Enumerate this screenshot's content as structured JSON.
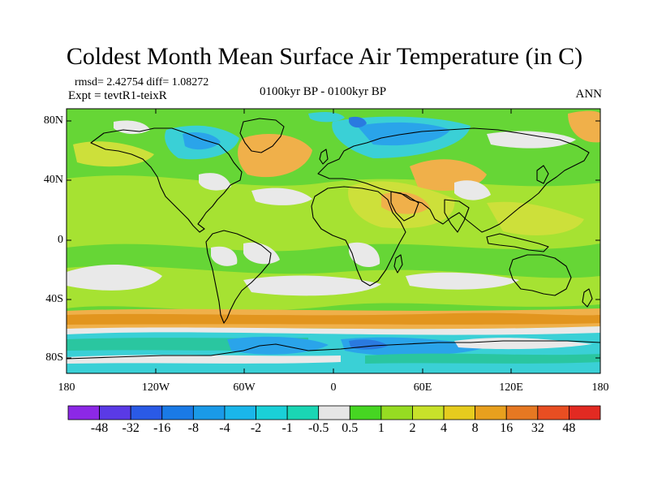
{
  "title": "Coldest Month Mean Surface Air Temperature (in C)",
  "stats": "rmsd= 2.42754 diff= 1.08272",
  "experiment": "Expt = tevtR1-teixR",
  "period": "0100kyr BP - 0100kyr BP",
  "season": "ANN",
  "map": {
    "lat_labels": [
      "80N",
      "40N",
      "0",
      "40S",
      "80S"
    ],
    "lon_labels": [
      "180",
      "120W",
      "60W",
      "0",
      "60E",
      "120E",
      "180"
    ],
    "colors": {
      "ocean_mid": "#66d636",
      "lime": "#a6e232",
      "yellow_green": "#cde03a",
      "light_orange": "#f0b04a",
      "orange": "#e2951e",
      "white": "#e9e9e9",
      "cyan": "#3ad0d6",
      "teal": "#2ac6a0",
      "sky_blue": "#2aa4ea",
      "mid_blue": "#2a7ae0",
      "dark_blue": "#2452d8",
      "coast": "#000000"
    }
  },
  "colorbar": {
    "labels": [
      "-48",
      "-32",
      "-16",
      "-8",
      "-4",
      "-2",
      "-1",
      "-0.5",
      "0.5",
      "1",
      "2",
      "4",
      "8",
      "16",
      "32",
      "48"
    ],
    "colors": [
      "#8c28e6",
      "#5a3ae6",
      "#2a5ae6",
      "#1a7ae6",
      "#1a9ae8",
      "#1ab6ea",
      "#1ad0d8",
      "#1ad6b4",
      "#e6e6e6",
      "#46d622",
      "#96dc22",
      "#c8e22a",
      "#e6cc1e",
      "#e8a01e",
      "#e67822",
      "#e84e22",
      "#e22a22"
    ]
  }
}
